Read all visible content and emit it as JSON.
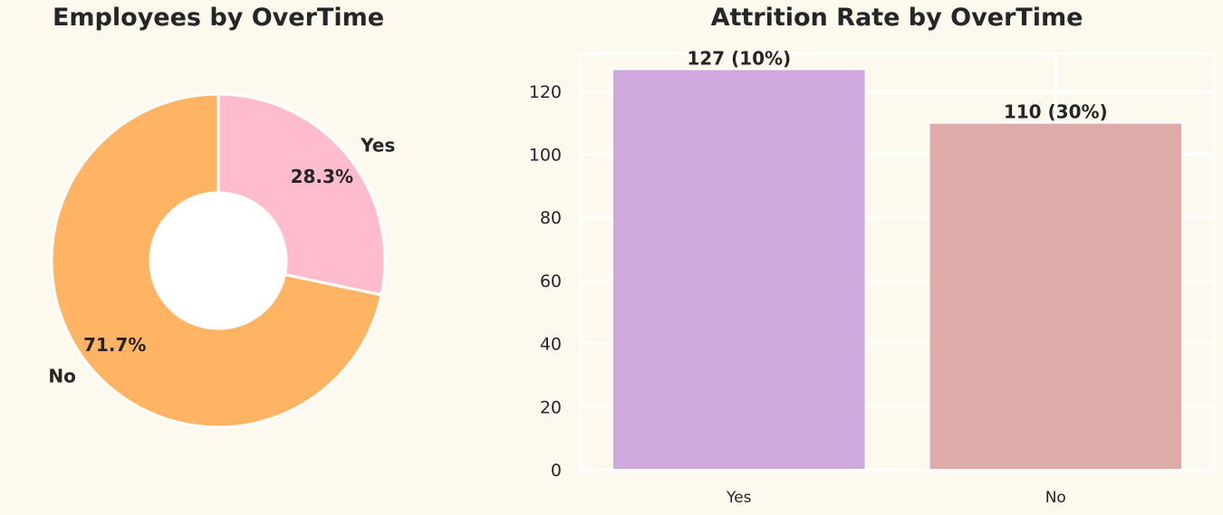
{
  "chart_data": [
    {
      "type": "pie",
      "title": "Employees by OverTime",
      "donut": true,
      "slices": [
        {
          "label": "Yes",
          "value": 28.3,
          "pct_label": "28.3%",
          "color": "#ffbccc"
        },
        {
          "label": "No",
          "value": 71.7,
          "pct_label": "71.7%",
          "color": "#ffb463"
        }
      ]
    },
    {
      "type": "bar",
      "title": "Attrition Rate by OverTime",
      "categories": [
        "Yes",
        "No"
      ],
      "values": [
        127,
        110
      ],
      "bar_labels": [
        "127 (10%)",
        "110 (30%)"
      ],
      "colors": [
        "#cfa8de",
        "#dfaaa8"
      ],
      "ylim": [
        0,
        132
      ],
      "yticks": [
        0,
        20,
        40,
        60,
        80,
        100,
        120
      ],
      "grid": true
    }
  ]
}
